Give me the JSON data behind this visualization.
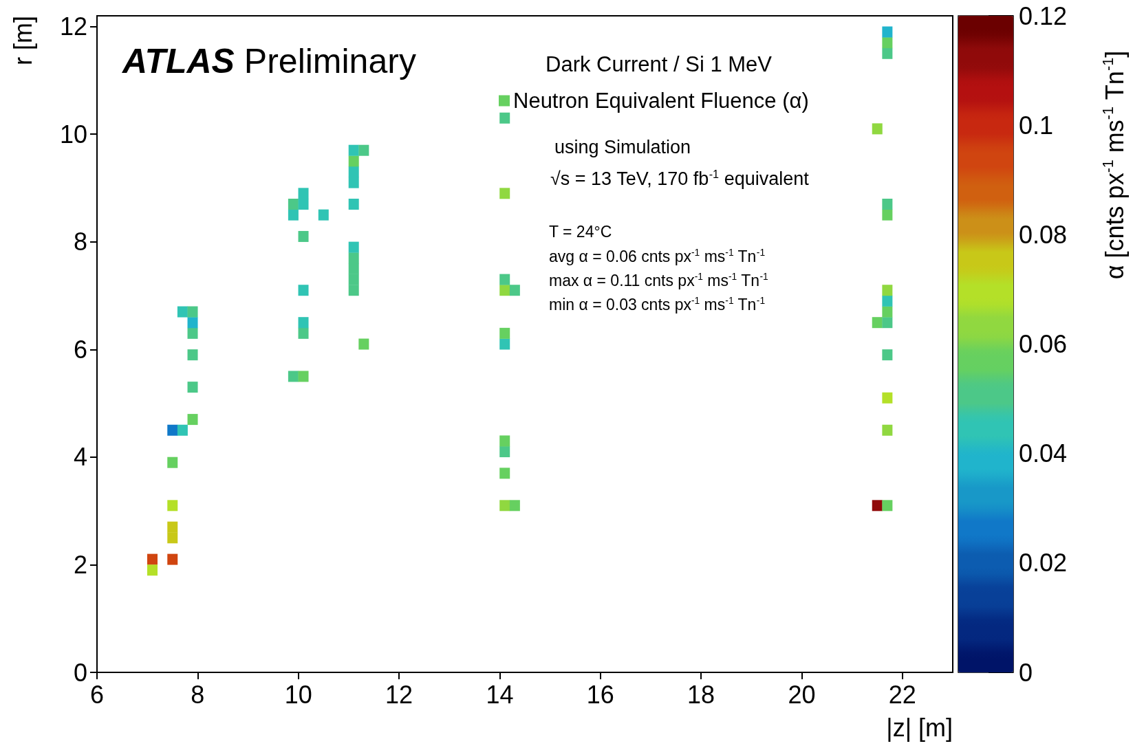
{
  "chart_data": {
    "type": "scatter",
    "title": "ATLAS Preliminary",
    "xlabel": "|z| [m]",
    "ylabel": "r [m]",
    "clabel": "α [cnts px$^{-1}$ ms$^{-1}$ Tn$^{-1}$]",
    "legend_title": "Dark Current / Si 1 MeV",
    "annotations": [
      "using Simulation",
      "√s = 13 TeV, 170 fb$^{-1}$ equivalent",
      "T = 24°C",
      "avg α = 0.06 cnts px$^{-1}$ ms$^{-1}$ Tn$^{-1}$",
      "max α = 0.11 cnts px$^{-1}$ ms$^{-1}$ Tn$^{-1}$",
      "min α = 0.03 cnts px$^{-1}$ ms$^{-1}$ Tn$^{-1}$"
    ],
    "xlim": [
      6,
      23
    ],
    "xticks": [
      6,
      8,
      10,
      12,
      14,
      16,
      18,
      20,
      22
    ],
    "ylim": [
      0,
      12.2
    ],
    "yticks": [
      0,
      2,
      4,
      6,
      8,
      10,
      12
    ],
    "clim": [
      0,
      0.12
    ],
    "cticks": [
      0,
      0.02,
      0.04,
      0.06,
      0.08,
      0.1,
      0.12
    ],
    "marker": "square",
    "grid": false,
    "legend": "top",
    "series": [
      {
        "name": "Neutron Equivalent Fluence (α)",
        "x": [
          7.1,
          7.1,
          7.5,
          7.5,
          7.5,
          7.5,
          7.5,
          7.5,
          7.7,
          7.7,
          7.9,
          7.9,
          7.9,
          7.9,
          7.9,
          7.9,
          9.9,
          9.9,
          9.9,
          10.1,
          10.1,
          10.1,
          10.1,
          10.1,
          10.1,
          10.1,
          10.5,
          11.1,
          11.1,
          11.1,
          11.1,
          11.1,
          11.1,
          11.1,
          11.1,
          11.1,
          11.1,
          11.3,
          11.3,
          14.1,
          14.1,
          14.1,
          14.1,
          14.1,
          14.1,
          14.1,
          14.1,
          14.1,
          14.1,
          14.3,
          14.3,
          21.5,
          21.5,
          21.5,
          21.7,
          21.7,
          21.7,
          21.7,
          21.7,
          21.7,
          21.7,
          21.7,
          21.7,
          21.7,
          21.7,
          21.7,
          21.7
        ],
        "values": [
          2.1,
          1.9,
          2.1,
          2.5,
          2.7,
          3.1,
          3.9,
          4.5,
          4.5,
          6.7,
          4.7,
          5.3,
          5.9,
          6.3,
          6.5,
          6.7,
          5.5,
          8.5,
          8.7,
          5.5,
          6.3,
          6.5,
          7.1,
          8.1,
          8.7,
          8.9,
          8.5,
          7.1,
          7.3,
          7.5,
          7.7,
          7.9,
          8.7,
          9.1,
          9.3,
          9.5,
          9.7,
          6.1,
          9.7,
          3.1,
          3.7,
          4.1,
          4.3,
          6.1,
          6.3,
          7.1,
          7.3,
          8.9,
          10.3,
          3.1,
          7.1,
          3.1,
          6.5,
          10.1,
          3.1,
          4.5,
          5.1,
          5.9,
          6.5,
          6.7,
          6.9,
          7.1,
          8.5,
          8.7,
          11.5,
          11.7,
          11.9
        ],
        "cvalues": [
          0.093,
          0.069,
          0.093,
          0.075,
          0.075,
          0.069,
          0.057,
          0.027,
          0.045,
          0.045,
          0.057,
          0.051,
          0.051,
          0.051,
          0.039,
          0.051,
          0.051,
          0.045,
          0.051,
          0.057,
          0.051,
          0.045,
          0.045,
          0.051,
          0.045,
          0.045,
          0.045,
          0.051,
          0.051,
          0.051,
          0.051,
          0.045,
          0.045,
          0.045,
          0.045,
          0.057,
          0.045,
          0.057,
          0.051,
          0.063,
          0.057,
          0.051,
          0.057,
          0.045,
          0.057,
          0.063,
          0.051,
          0.063,
          0.051,
          0.057,
          0.051,
          0.111,
          0.057,
          0.063,
          0.057,
          0.063,
          0.069,
          0.051,
          0.051,
          0.057,
          0.045,
          0.063,
          0.057,
          0.051,
          0.051,
          0.057,
          0.039
        ]
      }
    ]
  }
}
